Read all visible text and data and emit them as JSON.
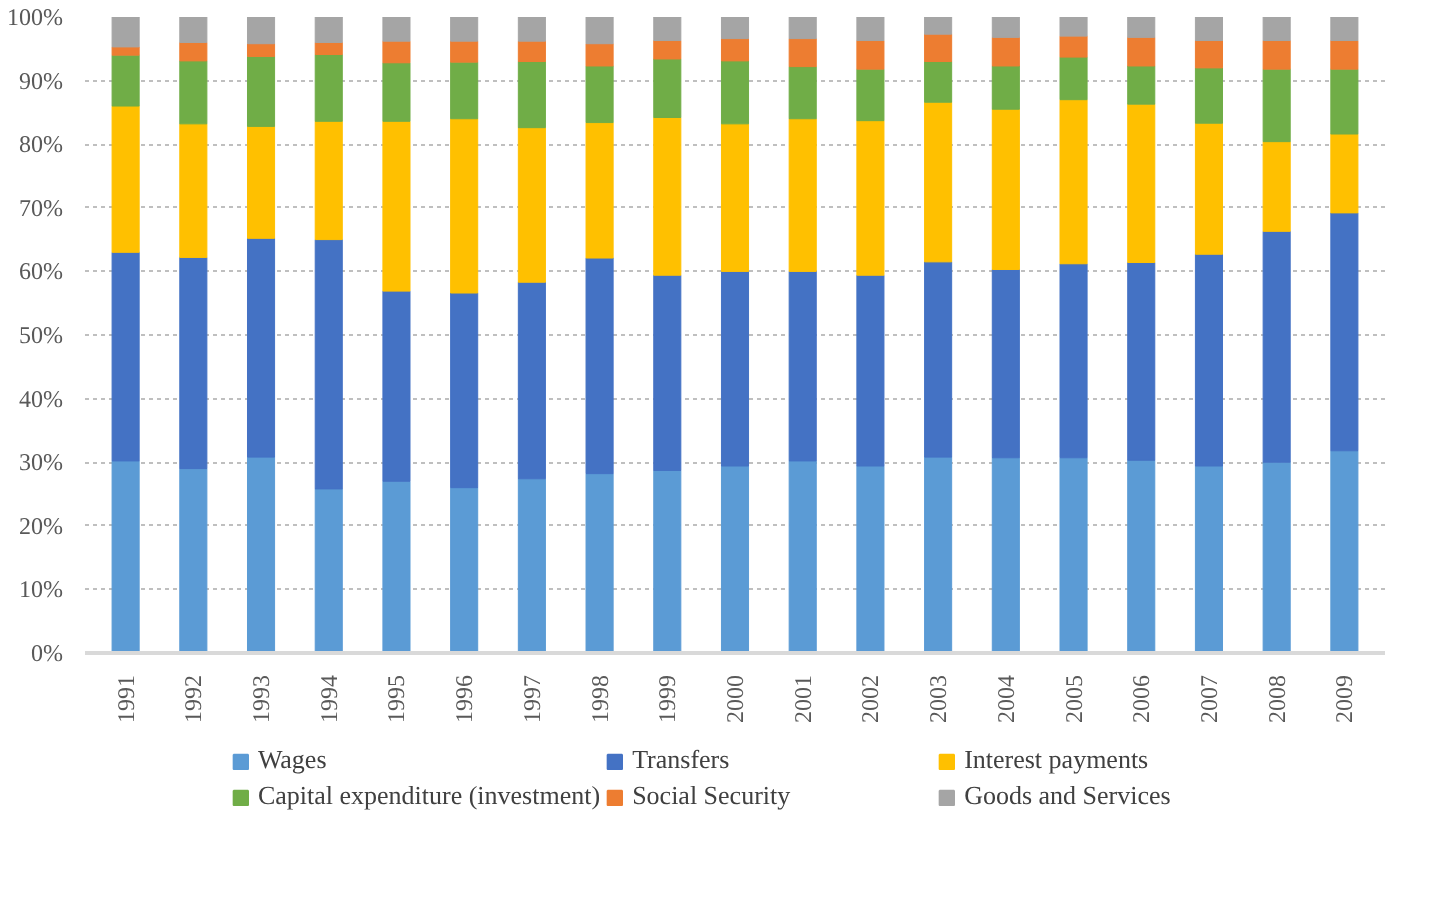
{
  "chart_data": {
    "type": "bar",
    "stacked": true,
    "categories": [
      "1991",
      "1992",
      "1993",
      "1994",
      "1995",
      "1996",
      "1997",
      "1998",
      "1999",
      "2000",
      "2001",
      "2002",
      "2003",
      "2004",
      "2005",
      "2006",
      "2007",
      "2008",
      "2009"
    ],
    "series": [
      {
        "name": "Wages",
        "color": "#5b9bd5",
        "values": [
          30.2,
          29.0,
          30.8,
          25.8,
          27.0,
          26.0,
          27.4,
          28.2,
          28.7,
          29.4,
          30.2,
          29.4,
          30.8,
          30.7,
          30.7,
          30.3,
          29.4,
          30.0,
          31.8
        ]
      },
      {
        "name": "Transfers",
        "color": "#4472c4",
        "values": [
          32.8,
          33.2,
          34.4,
          39.2,
          29.9,
          30.6,
          30.9,
          33.9,
          30.7,
          30.6,
          29.8,
          30.0,
          30.7,
          29.6,
          30.5,
          31.1,
          33.3,
          36.3,
          37.4
        ]
      },
      {
        "name": "Interest payments",
        "color": "#ffc000",
        "values": [
          23.0,
          21.0,
          17.6,
          18.6,
          26.7,
          27.4,
          24.3,
          21.3,
          24.8,
          23.2,
          24.0,
          24.3,
          25.1,
          25.2,
          25.8,
          24.9,
          20.6,
          14.1,
          12.4
        ]
      },
      {
        "name": "Capital expenditure (investment)",
        "color": "#70ad47",
        "values": [
          8.0,
          9.9,
          11.0,
          10.5,
          9.2,
          8.9,
          10.4,
          8.9,
          9.2,
          9.9,
          8.2,
          8.1,
          6.4,
          6.8,
          6.7,
          6.0,
          8.7,
          11.4,
          10.2
        ]
      },
      {
        "name": "Social Security",
        "color": "#ed7d31",
        "values": [
          1.3,
          2.9,
          2.0,
          1.9,
          3.4,
          3.3,
          3.2,
          3.5,
          2.9,
          3.5,
          4.4,
          4.5,
          4.3,
          4.5,
          3.3,
          4.5,
          4.3,
          4.5,
          4.5
        ]
      },
      {
        "name": "Goods and Services",
        "color": "#a5a5a5",
        "values": [
          4.7,
          4.0,
          4.2,
          4.0,
          3.8,
          3.8,
          3.8,
          4.2,
          3.7,
          3.4,
          3.4,
          3.7,
          2.7,
          3.2,
          3.0,
          3.2,
          3.7,
          3.7,
          3.7
        ]
      }
    ],
    "ylim": [
      0,
      100
    ],
    "yticks": [
      {
        "value": 0,
        "label": "0%"
      },
      {
        "value": 10,
        "label": "10%"
      },
      {
        "value": 20,
        "label": "20%"
      },
      {
        "value": 30,
        "label": "30%"
      },
      {
        "value": 40,
        "label": "40%"
      },
      {
        "value": 50,
        "label": "50%"
      },
      {
        "value": 60,
        "label": "60%"
      },
      {
        "value": 70,
        "label": "70%"
      },
      {
        "value": 80,
        "label": "80%"
      },
      {
        "value": 90,
        "label": "90%"
      },
      {
        "value": 100,
        "label": "100%"
      }
    ],
    "grid": "y",
    "legend": "bottom"
  }
}
